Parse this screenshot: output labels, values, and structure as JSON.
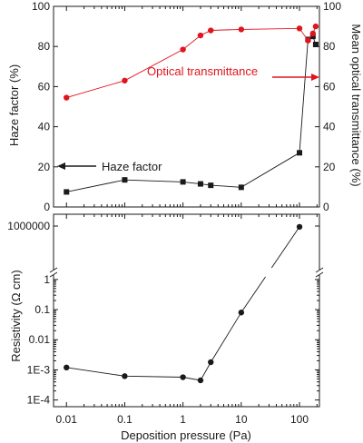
{
  "colors": {
    "axes": "#1a1a1a",
    "haze": "#1a1a1a",
    "transmittance": "#e0141e"
  },
  "chart_data": [
    {
      "type": "line",
      "panel": "top",
      "x_scale": "log",
      "xlim": [
        0.006,
        220
      ],
      "ylabel_left": "Haze factor (%)",
      "ylabel_right": "Mean optical transmittance (%)",
      "ylim_left": [
        0,
        100
      ],
      "ylim_right": [
        0,
        100
      ],
      "yticks_left": [
        "0",
        "20",
        "40",
        "60",
        "80",
        "100"
      ],
      "yticks_right": [
        "0",
        "20",
        "40",
        "60",
        "80",
        "100"
      ],
      "series": [
        {
          "name": "Haze factor",
          "axis": "left",
          "marker": "square",
          "color": "#1a1a1a",
          "x": [
            0.01,
            0.1,
            1,
            2,
            3,
            10,
            100,
            140,
            170,
            190
          ],
          "y": [
            7.5,
            13.5,
            12.5,
            11.5,
            10.8,
            9.8,
            27,
            83.5,
            85,
            81
          ]
        },
        {
          "name": "Optical transmittance",
          "axis": "right",
          "marker": "circle",
          "color": "#e0141e",
          "x": [
            0.01,
            0.1,
            1,
            2,
            3,
            10,
            100,
            140,
            170,
            190
          ],
          "y": [
            54.5,
            63,
            78.5,
            85.5,
            88,
            88.5,
            89,
            83,
            86.5,
            90
          ]
        }
      ],
      "annotations": [
        {
          "text": "Optical transmittance",
          "arrow": "right",
          "color": "#e0141e"
        },
        {
          "text": "Haze factor",
          "arrow": "left",
          "color": "#1a1a1a"
        }
      ]
    },
    {
      "type": "line",
      "panel": "bottom",
      "x_scale": "log",
      "y_scale": "log",
      "y_axis_break": true,
      "xlim": [
        0.006,
        220
      ],
      "xlabel": "Deposition pressure (Pa)",
      "xticks": [
        "0.01",
        "0.1",
        "1",
        "10",
        "100"
      ],
      "ylabel": "Resistivity (Ω cm)",
      "yticks": [
        "1E-4",
        "1E-3",
        "0.01",
        "0.1",
        "1",
        "1000000"
      ],
      "series": [
        {
          "name": "Resistivity",
          "marker": "circle",
          "color": "#1a1a1a",
          "x": [
            0.01,
            0.1,
            1,
            2,
            3,
            10,
            100
          ],
          "y": [
            0.0012,
            0.00062,
            0.00057,
            0.00045,
            0.0018,
            0.08,
            900000
          ]
        }
      ]
    }
  ]
}
